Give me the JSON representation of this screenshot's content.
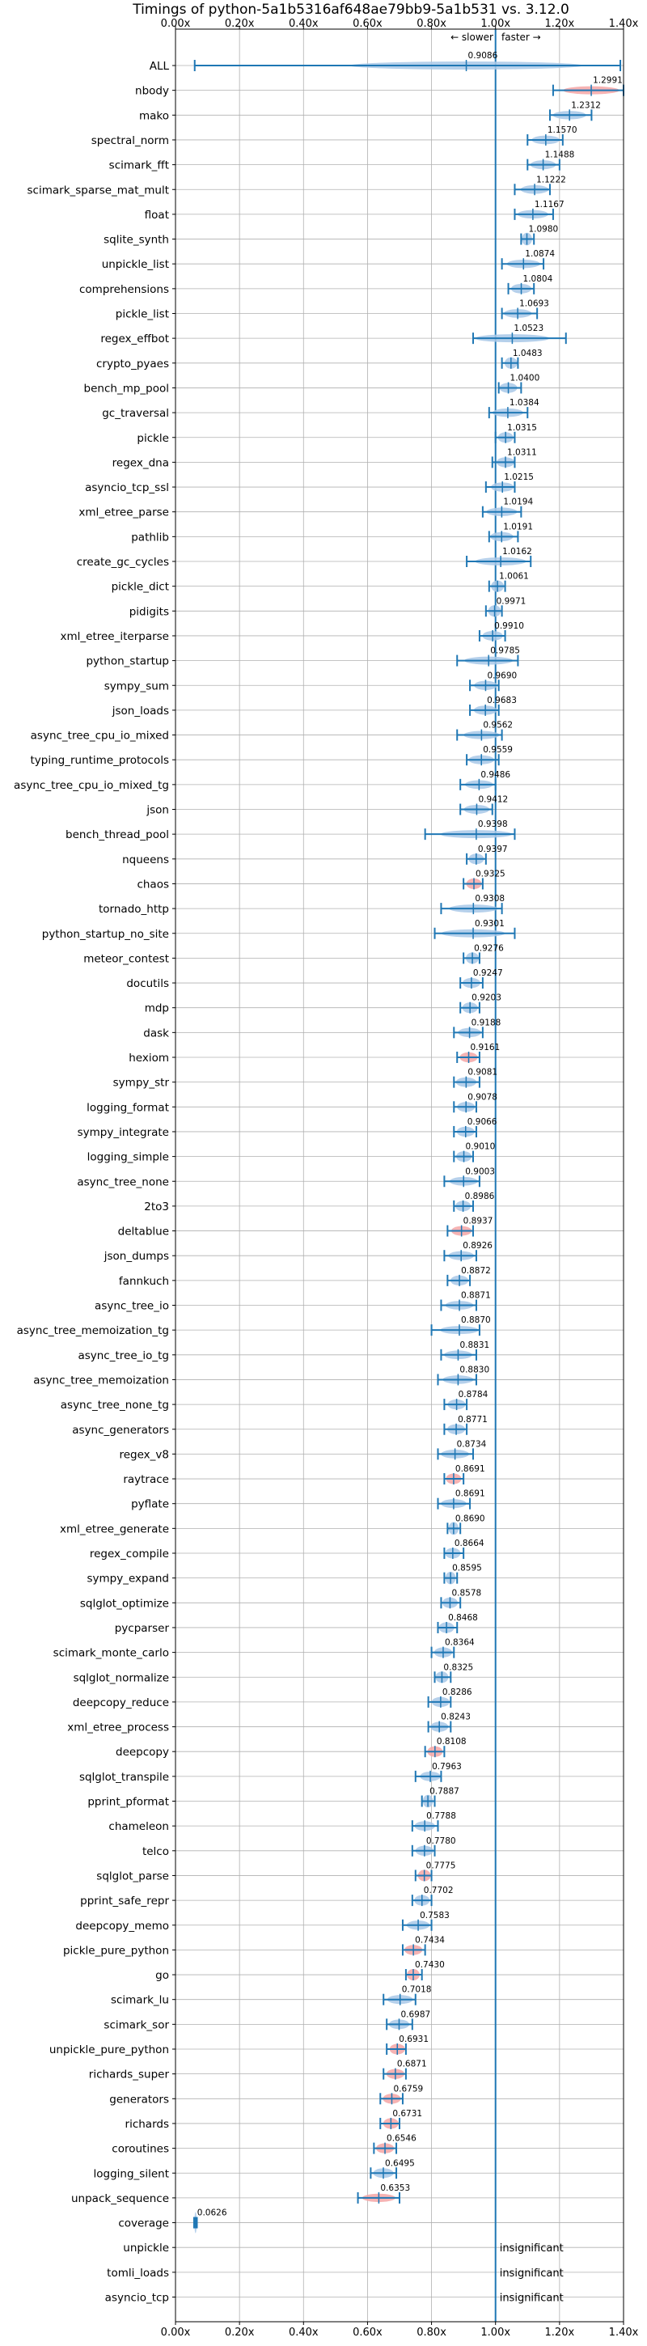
{
  "chart_data": {
    "type": "violin",
    "title": "Timings of python-5a1b5316af648ae79bb9-5a1b531 vs. 3.12.0",
    "xlim": [
      0.0,
      1.4
    ],
    "xticks": [
      "0.00x",
      "0.20x",
      "0.40x",
      "0.60x",
      "0.80x",
      "1.00x",
      "1.20x",
      "1.40x"
    ],
    "xtick_values": [
      0,
      0.2,
      0.4,
      0.6,
      0.8,
      1.0,
      1.2,
      1.4
    ],
    "grid": true,
    "reference_line": 1.0,
    "annotations": {
      "slower": "← slower",
      "faster": "faster →"
    },
    "colors": {
      "faster": "#a8c8e8",
      "slower": "#f4a6a6",
      "line": "#1f77b4",
      "grid": "#b0b0b0"
    },
    "insignificant_label": "insignificant",
    "benchmarks": [
      {
        "name": "ALL",
        "value": 0.9086,
        "label": "0.9086",
        "spread": [
          0.06,
          1.39
        ],
        "status": "faster"
      },
      {
        "name": "nbody",
        "value": 1.2991,
        "label": "1.2991",
        "spread": [
          1.18,
          1.4
        ],
        "status": "slower"
      },
      {
        "name": "mako",
        "value": 1.2312,
        "label": "1.2312",
        "spread": [
          1.17,
          1.3
        ],
        "status": "faster"
      },
      {
        "name": "spectral_norm",
        "value": 1.157,
        "label": "1.1570",
        "spread": [
          1.1,
          1.21
        ],
        "status": "faster"
      },
      {
        "name": "scimark_fft",
        "value": 1.1488,
        "label": "1.1488",
        "spread": [
          1.1,
          1.2
        ],
        "status": "faster"
      },
      {
        "name": "scimark_sparse_mat_mult",
        "value": 1.1222,
        "label": "1.1222",
        "spread": [
          1.06,
          1.17
        ],
        "status": "faster"
      },
      {
        "name": "float",
        "value": 1.1167,
        "label": "1.1167",
        "spread": [
          1.06,
          1.18
        ],
        "status": "faster"
      },
      {
        "name": "sqlite_synth",
        "value": 1.098,
        "label": "1.0980",
        "spread": [
          1.08,
          1.12
        ],
        "status": "faster"
      },
      {
        "name": "unpickle_list",
        "value": 1.0874,
        "label": "1.0874",
        "spread": [
          1.02,
          1.15
        ],
        "status": "faster"
      },
      {
        "name": "comprehensions",
        "value": 1.0804,
        "label": "1.0804",
        "spread": [
          1.04,
          1.12
        ],
        "status": "faster"
      },
      {
        "name": "pickle_list",
        "value": 1.0693,
        "label": "1.0693",
        "spread": [
          1.02,
          1.13
        ],
        "status": "faster"
      },
      {
        "name": "regex_effbot",
        "value": 1.0523,
        "label": "1.0523",
        "spread": [
          0.93,
          1.22
        ],
        "status": "faster"
      },
      {
        "name": "crypto_pyaes",
        "value": 1.0483,
        "label": "1.0483",
        "spread": [
          1.02,
          1.07
        ],
        "status": "faster"
      },
      {
        "name": "bench_mp_pool",
        "value": 1.04,
        "label": "1.0400",
        "spread": [
          1.01,
          1.08
        ],
        "status": "faster"
      },
      {
        "name": "gc_traversal",
        "value": 1.0384,
        "label": "1.0384",
        "spread": [
          0.98,
          1.1
        ],
        "status": "faster"
      },
      {
        "name": "pickle",
        "value": 1.0315,
        "label": "1.0315",
        "spread": [
          1.0,
          1.06
        ],
        "status": "faster"
      },
      {
        "name": "regex_dna",
        "value": 1.0311,
        "label": "1.0311",
        "spread": [
          0.99,
          1.06
        ],
        "status": "faster"
      },
      {
        "name": "asyncio_tcp_ssl",
        "value": 1.0215,
        "label": "1.0215",
        "spread": [
          0.97,
          1.06
        ],
        "status": "faster"
      },
      {
        "name": "xml_etree_parse",
        "value": 1.0194,
        "label": "1.0194",
        "spread": [
          0.96,
          1.08
        ],
        "status": "faster"
      },
      {
        "name": "pathlib",
        "value": 1.0191,
        "label": "1.0191",
        "spread": [
          0.98,
          1.07
        ],
        "status": "faster"
      },
      {
        "name": "create_gc_cycles",
        "value": 1.0162,
        "label": "1.0162",
        "spread": [
          0.91,
          1.11
        ],
        "status": "faster"
      },
      {
        "name": "pickle_dict",
        "value": 1.0061,
        "label": "1.0061",
        "spread": [
          0.98,
          1.03
        ],
        "status": "faster"
      },
      {
        "name": "pidigits",
        "value": 0.9971,
        "label": "0.9971",
        "spread": [
          0.97,
          1.02
        ],
        "status": "faster"
      },
      {
        "name": "xml_etree_iterparse",
        "value": 0.991,
        "label": "0.9910",
        "spread": [
          0.95,
          1.03
        ],
        "status": "faster"
      },
      {
        "name": "python_startup",
        "value": 0.9785,
        "label": "0.9785",
        "spread": [
          0.88,
          1.07
        ],
        "status": "faster"
      },
      {
        "name": "sympy_sum",
        "value": 0.969,
        "label": "0.9690",
        "spread": [
          0.92,
          1.01
        ],
        "status": "faster"
      },
      {
        "name": "json_loads",
        "value": 0.9683,
        "label": "0.9683",
        "spread": [
          0.92,
          1.01
        ],
        "status": "faster"
      },
      {
        "name": "async_tree_cpu_io_mixed",
        "value": 0.9562,
        "label": "0.9562",
        "spread": [
          0.88,
          1.02
        ],
        "status": "faster"
      },
      {
        "name": "typing_runtime_protocols",
        "value": 0.9559,
        "label": "0.9559",
        "spread": [
          0.91,
          1.01
        ],
        "status": "faster"
      },
      {
        "name": "async_tree_cpu_io_mixed_tg",
        "value": 0.9486,
        "label": "0.9486",
        "spread": [
          0.89,
          1.0
        ],
        "status": "faster"
      },
      {
        "name": "json",
        "value": 0.9412,
        "label": "0.9412",
        "spread": [
          0.89,
          0.99
        ],
        "status": "faster"
      },
      {
        "name": "bench_thread_pool",
        "value": 0.9398,
        "label": "0.9398",
        "spread": [
          0.78,
          1.06
        ],
        "status": "faster"
      },
      {
        "name": "nqueens",
        "value": 0.9397,
        "label": "0.9397",
        "spread": [
          0.91,
          0.97
        ],
        "status": "faster"
      },
      {
        "name": "chaos",
        "value": 0.9325,
        "label": "0.9325",
        "spread": [
          0.9,
          0.96
        ],
        "status": "slower"
      },
      {
        "name": "tornado_http",
        "value": 0.9308,
        "label": "0.9308",
        "spread": [
          0.83,
          1.02
        ],
        "status": "faster"
      },
      {
        "name": "python_startup_no_site",
        "value": 0.9301,
        "label": "0.9301",
        "spread": [
          0.81,
          1.06
        ],
        "status": "faster"
      },
      {
        "name": "meteor_contest",
        "value": 0.9276,
        "label": "0.9276",
        "spread": [
          0.9,
          0.95
        ],
        "status": "faster"
      },
      {
        "name": "docutils",
        "value": 0.9247,
        "label": "0.9247",
        "spread": [
          0.89,
          0.96
        ],
        "status": "faster"
      },
      {
        "name": "mdp",
        "value": 0.9203,
        "label": "0.9203",
        "spread": [
          0.89,
          0.95
        ],
        "status": "faster"
      },
      {
        "name": "dask",
        "value": 0.9188,
        "label": "0.9188",
        "spread": [
          0.87,
          0.96
        ],
        "status": "faster"
      },
      {
        "name": "hexiom",
        "value": 0.9161,
        "label": "0.9161",
        "spread": [
          0.88,
          0.95
        ],
        "status": "slower"
      },
      {
        "name": "sympy_str",
        "value": 0.9081,
        "label": "0.9081",
        "spread": [
          0.87,
          0.95
        ],
        "status": "faster"
      },
      {
        "name": "logging_format",
        "value": 0.9078,
        "label": "0.9078",
        "spread": [
          0.87,
          0.94
        ],
        "status": "faster"
      },
      {
        "name": "sympy_integrate",
        "value": 0.9066,
        "label": "0.9066",
        "spread": [
          0.87,
          0.94
        ],
        "status": "faster"
      },
      {
        "name": "logging_simple",
        "value": 0.901,
        "label": "0.9010",
        "spread": [
          0.87,
          0.93
        ],
        "status": "faster"
      },
      {
        "name": "async_tree_none",
        "value": 0.9003,
        "label": "0.9003",
        "spread": [
          0.84,
          0.95
        ],
        "status": "faster"
      },
      {
        "name": "2to3",
        "value": 0.8986,
        "label": "0.8986",
        "spread": [
          0.87,
          0.93
        ],
        "status": "faster"
      },
      {
        "name": "deltablue",
        "value": 0.8937,
        "label": "0.8937",
        "spread": [
          0.85,
          0.93
        ],
        "status": "slower"
      },
      {
        "name": "json_dumps",
        "value": 0.8926,
        "label": "0.8926",
        "spread": [
          0.84,
          0.94
        ],
        "status": "faster"
      },
      {
        "name": "fannkuch",
        "value": 0.8872,
        "label": "0.8872",
        "spread": [
          0.85,
          0.92
        ],
        "status": "faster"
      },
      {
        "name": "async_tree_io",
        "value": 0.8871,
        "label": "0.8871",
        "spread": [
          0.83,
          0.94
        ],
        "status": "faster"
      },
      {
        "name": "async_tree_memoization_tg",
        "value": 0.887,
        "label": "0.8870",
        "spread": [
          0.8,
          0.95
        ],
        "status": "faster"
      },
      {
        "name": "async_tree_io_tg",
        "value": 0.8831,
        "label": "0.8831",
        "spread": [
          0.83,
          0.94
        ],
        "status": "faster"
      },
      {
        "name": "async_tree_memoization",
        "value": 0.883,
        "label": "0.8830",
        "spread": [
          0.82,
          0.94
        ],
        "status": "faster"
      },
      {
        "name": "async_tree_none_tg",
        "value": 0.8784,
        "label": "0.8784",
        "spread": [
          0.84,
          0.91
        ],
        "status": "faster"
      },
      {
        "name": "async_generators",
        "value": 0.8771,
        "label": "0.8771",
        "spread": [
          0.84,
          0.91
        ],
        "status": "faster"
      },
      {
        "name": "regex_v8",
        "value": 0.8734,
        "label": "0.8734",
        "spread": [
          0.82,
          0.93
        ],
        "status": "faster"
      },
      {
        "name": "raytrace",
        "value": 0.8691,
        "label": "0.8691",
        "spread": [
          0.84,
          0.9
        ],
        "status": "slower"
      },
      {
        "name": "pyflate",
        "value": 0.8691,
        "label": "0.8691",
        "spread": [
          0.82,
          0.92
        ],
        "status": "faster"
      },
      {
        "name": "xml_etree_generate",
        "value": 0.869,
        "label": "0.8690",
        "spread": [
          0.85,
          0.89
        ],
        "status": "faster"
      },
      {
        "name": "regex_compile",
        "value": 0.8664,
        "label": "0.8664",
        "spread": [
          0.84,
          0.9
        ],
        "status": "faster"
      },
      {
        "name": "sympy_expand",
        "value": 0.8595,
        "label": "0.8595",
        "spread": [
          0.84,
          0.88
        ],
        "status": "faster"
      },
      {
        "name": "sqlglot_optimize",
        "value": 0.8578,
        "label": "0.8578",
        "spread": [
          0.83,
          0.89
        ],
        "status": "faster"
      },
      {
        "name": "pycparser",
        "value": 0.8468,
        "label": "0.8468",
        "spread": [
          0.82,
          0.88
        ],
        "status": "faster"
      },
      {
        "name": "scimark_monte_carlo",
        "value": 0.8364,
        "label": "0.8364",
        "spread": [
          0.8,
          0.87
        ],
        "status": "faster"
      },
      {
        "name": "sqlglot_normalize",
        "value": 0.8325,
        "label": "0.8325",
        "spread": [
          0.81,
          0.86
        ],
        "status": "faster"
      },
      {
        "name": "deepcopy_reduce",
        "value": 0.8286,
        "label": "0.8286",
        "spread": [
          0.79,
          0.86
        ],
        "status": "faster"
      },
      {
        "name": "xml_etree_process",
        "value": 0.8243,
        "label": "0.8243",
        "spread": [
          0.79,
          0.86
        ],
        "status": "faster"
      },
      {
        "name": "deepcopy",
        "value": 0.8108,
        "label": "0.8108",
        "spread": [
          0.78,
          0.84
        ],
        "status": "slower"
      },
      {
        "name": "sqlglot_transpile",
        "value": 0.7963,
        "label": "0.7963",
        "spread": [
          0.75,
          0.83
        ],
        "status": "faster"
      },
      {
        "name": "pprint_pformat",
        "value": 0.7887,
        "label": "0.7887",
        "spread": [
          0.77,
          0.81
        ],
        "status": "faster"
      },
      {
        "name": "chameleon",
        "value": 0.7788,
        "label": "0.7788",
        "spread": [
          0.74,
          0.82
        ],
        "status": "faster"
      },
      {
        "name": "telco",
        "value": 0.778,
        "label": "0.7780",
        "spread": [
          0.74,
          0.81
        ],
        "status": "faster"
      },
      {
        "name": "sqlglot_parse",
        "value": 0.7775,
        "label": "0.7775",
        "spread": [
          0.75,
          0.8
        ],
        "status": "slower"
      },
      {
        "name": "pprint_safe_repr",
        "value": 0.7702,
        "label": "0.7702",
        "spread": [
          0.74,
          0.8
        ],
        "status": "faster"
      },
      {
        "name": "deepcopy_memo",
        "value": 0.7583,
        "label": "0.7583",
        "spread": [
          0.71,
          0.8
        ],
        "status": "faster"
      },
      {
        "name": "pickle_pure_python",
        "value": 0.7434,
        "label": "0.7434",
        "spread": [
          0.71,
          0.78
        ],
        "status": "slower"
      },
      {
        "name": "go",
        "value": 0.743,
        "label": "0.7430",
        "spread": [
          0.72,
          0.77
        ],
        "status": "slower"
      },
      {
        "name": "scimark_lu",
        "value": 0.7018,
        "label": "0.7018",
        "spread": [
          0.65,
          0.75
        ],
        "status": "faster"
      },
      {
        "name": "scimark_sor",
        "value": 0.6987,
        "label": "0.6987",
        "spread": [
          0.66,
          0.74
        ],
        "status": "faster"
      },
      {
        "name": "unpickle_pure_python",
        "value": 0.6931,
        "label": "0.6931",
        "spread": [
          0.66,
          0.72
        ],
        "status": "slower"
      },
      {
        "name": "richards_super",
        "value": 0.6871,
        "label": "0.6871",
        "spread": [
          0.65,
          0.72
        ],
        "status": "slower"
      },
      {
        "name": "generators",
        "value": 0.6759,
        "label": "0.6759",
        "spread": [
          0.64,
          0.71
        ],
        "status": "slower"
      },
      {
        "name": "richards",
        "value": 0.6731,
        "label": "0.6731",
        "spread": [
          0.64,
          0.7
        ],
        "status": "slower"
      },
      {
        "name": "coroutines",
        "value": 0.6546,
        "label": "0.6546",
        "spread": [
          0.62,
          0.69
        ],
        "status": "slower"
      },
      {
        "name": "logging_silent",
        "value": 0.6495,
        "label": "0.6495",
        "spread": [
          0.61,
          0.69
        ],
        "status": "faster"
      },
      {
        "name": "unpack_sequence",
        "value": 0.6353,
        "label": "0.6353",
        "spread": [
          0.57,
          0.7
        ],
        "status": "slower"
      },
      {
        "name": "coverage",
        "value": 0.0626,
        "label": "0.0626",
        "spread": [
          0.058,
          0.067
        ],
        "status": "faster"
      },
      {
        "name": "unpickle",
        "value": null,
        "label": "insignificant",
        "spread": null,
        "status": "insignificant"
      },
      {
        "name": "tomli_loads",
        "value": null,
        "label": "insignificant",
        "spread": null,
        "status": "insignificant"
      },
      {
        "name": "asyncio_tcp",
        "value": null,
        "label": "insignificant",
        "spread": null,
        "status": "insignificant"
      }
    ]
  }
}
